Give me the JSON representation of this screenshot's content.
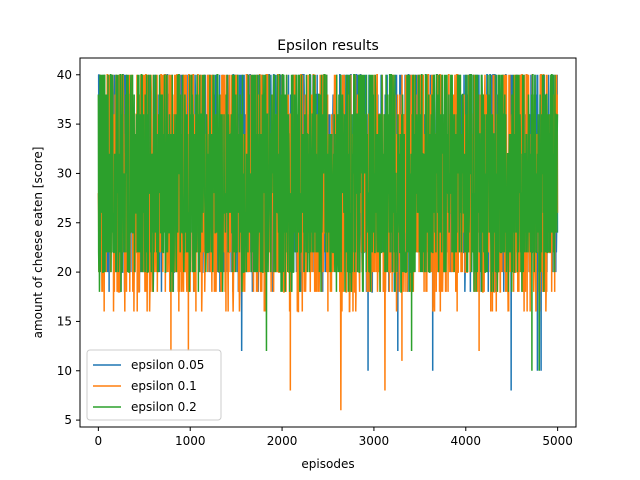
{
  "chart_data": {
    "type": "line",
    "title": "Epsilon results",
    "xlabel": "episodes",
    "ylabel": "amount of cheese eaten [score]",
    "xlim": [
      -200,
      5200
    ],
    "ylim": [
      4.3,
      41.7
    ],
    "x_ticks": [
      0,
      1000,
      2000,
      3000,
      4000,
      5000
    ],
    "y_ticks": [
      5,
      10,
      15,
      20,
      25,
      30,
      35,
      40
    ],
    "grid": false,
    "legend_position": "lower-left",
    "x_range": [
      0,
      4999
    ],
    "series": [
      {
        "name": "epsilon 0.05",
        "color": "#1f77b4",
        "typical_range": [
          18,
          40
        ],
        "notable_points": [
          [
            30,
            33
          ],
          [
            2936,
            10
          ],
          [
            3640,
            10
          ],
          [
            4494,
            8
          ],
          [
            4780,
            10
          ],
          [
            4820,
            10
          ],
          [
            1560,
            12
          ],
          [
            3260,
            12
          ]
        ]
      },
      {
        "name": "epsilon 0.1",
        "color": "#ff7f0e",
        "typical_range": [
          16,
          40
        ],
        "notable_points": [
          [
            30,
            22
          ],
          [
            790,
            12
          ],
          [
            2090,
            8
          ],
          [
            2640,
            6
          ],
          [
            3120,
            8
          ],
          [
            3305,
            11
          ],
          [
            4145,
            12
          ],
          [
            980,
            12
          ]
        ]
      },
      {
        "name": "epsilon 0.2",
        "color": "#2ca02c",
        "typical_range": [
          18,
          40
        ],
        "notable_points": [
          [
            30,
            33
          ],
          [
            4720,
            10
          ],
          [
            4800,
            10
          ],
          [
            1830,
            12
          ],
          [
            3410,
            12
          ]
        ]
      }
    ]
  }
}
